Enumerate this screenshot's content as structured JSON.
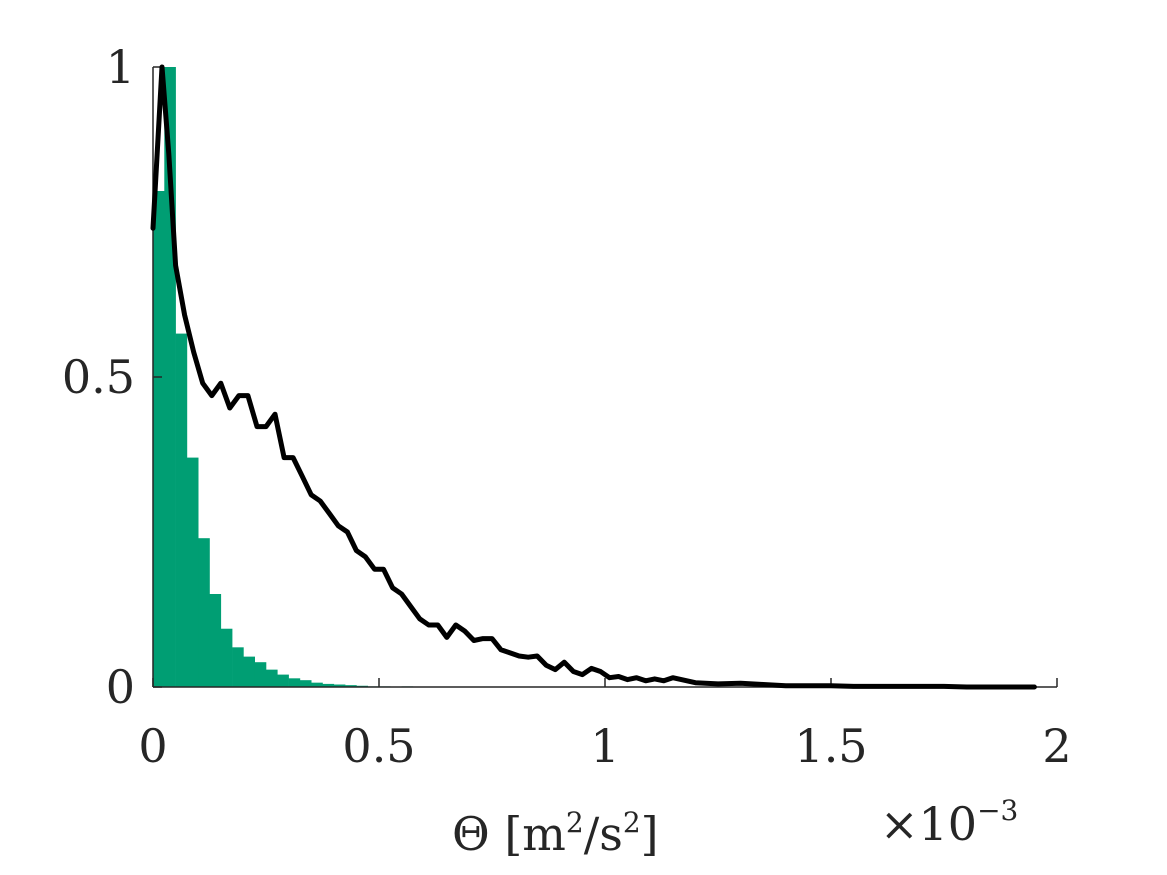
{
  "chart_data": {
    "type": "bar",
    "xlabel_parts": {
      "symbol": "Θ",
      "open": " [m",
      "sup1": "2",
      "mid": "/s",
      "sup2": "2",
      "close": "]"
    },
    "x_exponent": {
      "base": "×10",
      "power": "−3"
    },
    "xlim": [
      0,
      2
    ],
    "ylim": [
      0,
      1
    ],
    "x_ticks": [
      {
        "value": 0,
        "label": "0"
      },
      {
        "value": 0.5,
        "label": "0.5"
      },
      {
        "value": 1,
        "label": "1"
      },
      {
        "value": 1.5,
        "label": "1.5"
      },
      {
        "value": 2,
        "label": "2"
      }
    ],
    "y_ticks": [
      {
        "value": 0,
        "label": "0"
      },
      {
        "value": 0.5,
        "label": "0.5"
      },
      {
        "value": 1,
        "label": "1"
      }
    ],
    "series": [
      {
        "type": "histogram",
        "color": "#009e73",
        "bin_width": 0.025,
        "bin_starts": [
          0,
          0.025,
          0.05,
          0.075,
          0.1,
          0.125,
          0.15,
          0.175,
          0.2,
          0.225,
          0.25,
          0.275,
          0.3,
          0.325,
          0.35,
          0.375,
          0.4,
          0.425,
          0.45,
          0.475,
          0.5,
          0.525,
          0.55
        ],
        "values": [
          0.8,
          1.0,
          0.57,
          0.37,
          0.24,
          0.15,
          0.094,
          0.064,
          0.049,
          0.04,
          0.028,
          0.02,
          0.014,
          0.011,
          0.007,
          0.005,
          0.004,
          0.003,
          0.002,
          0.001,
          0.001,
          0.0,
          0.001
        ]
      },
      {
        "type": "line",
        "color": "#000000",
        "x": [
          0.0,
          0.02,
          0.035,
          0.05,
          0.07,
          0.09,
          0.11,
          0.13,
          0.15,
          0.17,
          0.19,
          0.21,
          0.23,
          0.25,
          0.27,
          0.29,
          0.31,
          0.33,
          0.35,
          0.37,
          0.39,
          0.41,
          0.43,
          0.45,
          0.47,
          0.49,
          0.51,
          0.53,
          0.55,
          0.57,
          0.59,
          0.61,
          0.63,
          0.65,
          0.67,
          0.69,
          0.71,
          0.73,
          0.75,
          0.77,
          0.79,
          0.81,
          0.83,
          0.85,
          0.87,
          0.89,
          0.91,
          0.93,
          0.95,
          0.97,
          0.99,
          1.01,
          1.03,
          1.05,
          1.07,
          1.09,
          1.11,
          1.13,
          1.15,
          1.2,
          1.25,
          1.3,
          1.35,
          1.4,
          1.45,
          1.5,
          1.55,
          1.6,
          1.65,
          1.7,
          1.75,
          1.8,
          1.85,
          1.9,
          1.95
        ],
        "y": [
          0.74,
          1.0,
          0.86,
          0.68,
          0.6,
          0.54,
          0.49,
          0.47,
          0.49,
          0.45,
          0.47,
          0.47,
          0.42,
          0.42,
          0.44,
          0.37,
          0.37,
          0.34,
          0.31,
          0.3,
          0.28,
          0.26,
          0.25,
          0.22,
          0.21,
          0.19,
          0.19,
          0.16,
          0.15,
          0.13,
          0.11,
          0.1,
          0.1,
          0.08,
          0.1,
          0.09,
          0.075,
          0.078,
          0.078,
          0.06,
          0.055,
          0.05,
          0.048,
          0.05,
          0.035,
          0.028,
          0.04,
          0.025,
          0.02,
          0.03,
          0.025,
          0.015,
          0.017,
          0.012,
          0.015,
          0.01,
          0.013,
          0.01,
          0.015,
          0.007,
          0.005,
          0.006,
          0.004,
          0.002,
          0.002,
          0.002,
          0.001,
          0.001,
          0.001,
          0.001,
          0.001,
          0.0,
          0.0,
          0.0,
          0.0
        ]
      }
    ]
  }
}
